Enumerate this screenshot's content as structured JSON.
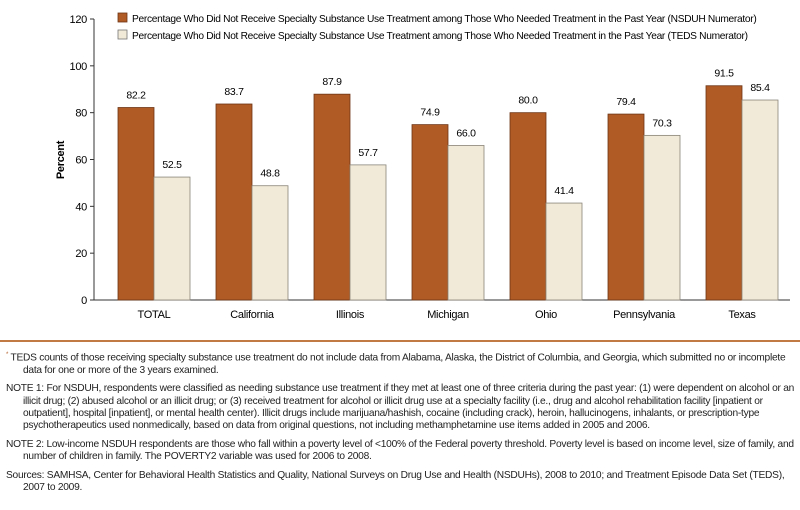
{
  "chart_data": {
    "type": "bar",
    "ylabel": "Percent",
    "xlabel": "",
    "ylim": [
      0,
      120
    ],
    "yticks": [
      0,
      20,
      40,
      60,
      80,
      100,
      120
    ],
    "grid": false,
    "legend_position": "top",
    "categories": [
      "TOTAL",
      "California",
      "Illinois",
      "Michigan",
      "Ohio",
      "Pennsylvania",
      "Texas"
    ],
    "series": [
      {
        "name": "Percentage Who Did Not Receive Specialty Substance Use Treatment among Those Who Needed Treatment in the Past Year (NSDUH Numerator)",
        "color": "#b05a25",
        "values": [
          82.2,
          83.7,
          87.9,
          74.9,
          80.0,
          79.4,
          91.5
        ],
        "labels": [
          "82.2",
          "83.7",
          "87.9",
          "74.9",
          "80.0",
          "79.4",
          "91.5"
        ]
      },
      {
        "name": "Percentage Who Did Not Receive Specialty Substance Use Treatment among Those Who Needed Treatment in the Past Year (TEDS Numerator)",
        "color": "#f1ead9",
        "values": [
          52.5,
          48.8,
          57.7,
          66.0,
          41.4,
          70.3,
          85.4
        ],
        "labels": [
          "52.5",
          "48.8",
          "57.7",
          "66.0",
          "41.4",
          "70.3",
          "85.4"
        ]
      }
    ]
  },
  "notes": {
    "footnote_marker": "*",
    "footnote": "TEDS counts of those receiving specialty substance use treatment do not include data from Alabama, Alaska, the District of Columbia, and Georgia, which submitted no or incomplete data for one or more of the 3 years examined.",
    "note1": "NOTE 1: For NSDUH, respondents were classified as needing substance use treatment if they met at least one of three criteria during the past year: (1) were dependent on alcohol or an illicit drug; (2) abused alcohol or an illicit drug; or (3) received treatment for alcohol or illicit drug use at a specialty facility (i.e., drug and alcohol rehabilitation facility [inpatient or outpatient], hospital [inpatient], or mental health center). Illicit drugs include marijuana/hashish, cocaine (including crack), heroin, hallucinogens, inhalants, or prescription-type psychotherapeutics used nonmedically, based on data from original questions, not including methamphetamine use items added in 2005 and 2006.",
    "note2": "NOTE 2: Low-income NSDUH respondents are those who fall within a poverty level of <100% of the Federal poverty threshold. Poverty level is based on income level, size of family, and number of children in family. The POVERTY2 variable was used for 2006 to 2008.",
    "sources": "Sources: SAMHSA, Center for Behavioral Health Statistics and Quality, National Surveys on Drug Use and Health (NSDUHs), 2008 to 2010; and Treatment Episode Data Set (TEDS), 2007 to 2009."
  }
}
